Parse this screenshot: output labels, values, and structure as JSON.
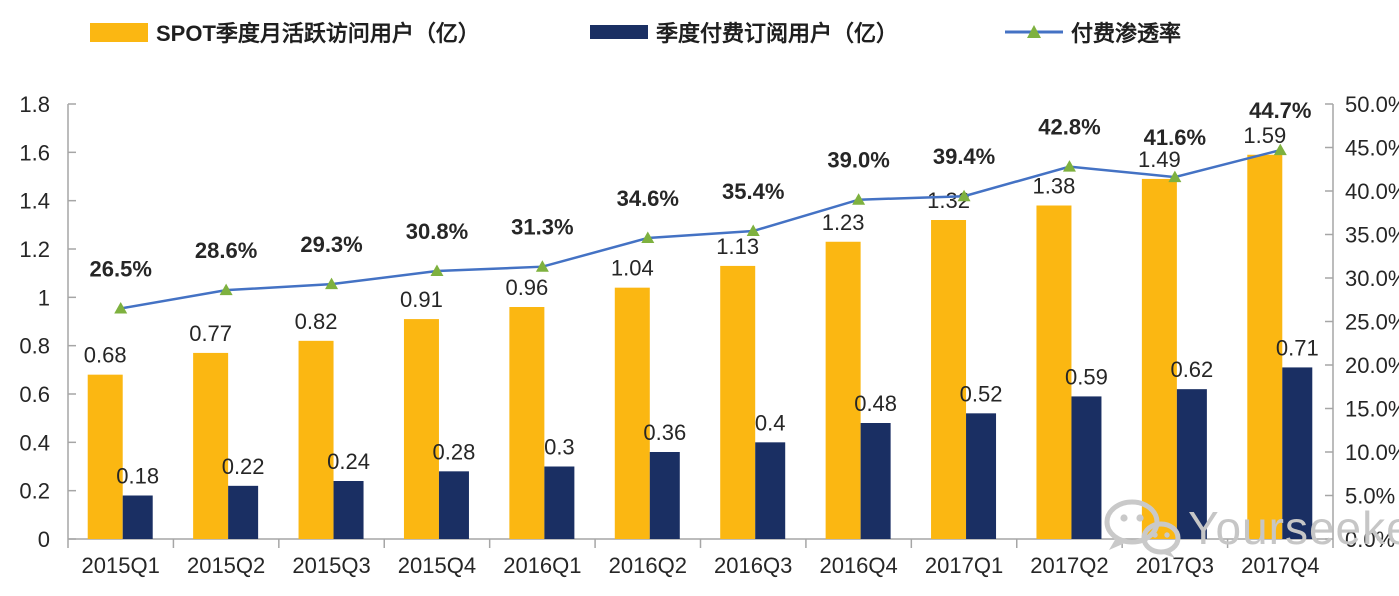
{
  "legend": [
    {
      "label": "SPOT季度月活跃访问用户（亿）",
      "color": "#FBB712"
    },
    {
      "label": "季度付费订阅用户（亿）",
      "color": "#1A2F63"
    },
    {
      "label": "付费渗透率",
      "color": "#4472C4",
      "marker_color": "#7EB13F"
    }
  ],
  "watermark": {
    "text": "Yourseeker",
    "icon": "wechat-icon",
    "color": "#C6C6C6"
  },
  "chart_data": {
    "type": "bar",
    "subtype": "grouped bars with overlaid line on secondary axis",
    "categories": [
      "2015Q1",
      "2015Q2",
      "2015Q3",
      "2015Q4",
      "2016Q1",
      "2016Q2",
      "2016Q3",
      "2016Q4",
      "2017Q1",
      "2017Q2",
      "2017Q3",
      "2017Q4"
    ],
    "series": [
      {
        "name": "SPOT季度月活跃访问用户（亿）",
        "type": "bar",
        "axis": "left",
        "color": "#FBB712",
        "values": [
          0.68,
          0.77,
          0.82,
          0.91,
          0.96,
          1.04,
          1.13,
          1.23,
          1.32,
          1.38,
          1.49,
          1.59
        ],
        "labels": [
          "0.68",
          "0.77",
          "0.82",
          "0.91",
          "0.96",
          "1.04",
          "1.13",
          "1.23",
          "1.32",
          "1.38",
          "1.49",
          "1.59"
        ]
      },
      {
        "name": "季度付费订阅用户（亿）",
        "type": "bar",
        "axis": "left",
        "color": "#1A2F63",
        "values": [
          0.18,
          0.22,
          0.24,
          0.28,
          0.3,
          0.36,
          0.4,
          0.48,
          0.52,
          0.59,
          0.62,
          0.71
        ],
        "labels": [
          "0.18",
          "0.22",
          "0.24",
          "0.28",
          "0.3",
          "0.36",
          "0.4",
          "0.48",
          "0.52",
          "0.59",
          "0.62",
          "0.71"
        ]
      },
      {
        "name": "付费渗透率",
        "type": "line",
        "axis": "right",
        "color": "#4472C4",
        "marker": "triangle",
        "marker_color": "#7EB13F",
        "values": [
          26.5,
          28.6,
          29.3,
          30.8,
          31.3,
          34.6,
          35.4,
          39.0,
          39.4,
          42.8,
          41.6,
          44.7
        ],
        "labels": [
          "26.5%",
          "28.6%",
          "29.3%",
          "30.8%",
          "31.3%",
          "34.6%",
          "35.4%",
          "39.0%",
          "39.4%",
          "42.8%",
          "41.6%",
          "44.7%"
        ]
      }
    ],
    "left_axis": {
      "min": 0,
      "max": 1.8,
      "ticks": [
        "0",
        "0.2",
        "0.4",
        "0.6",
        "0.8",
        "1",
        "1.2",
        "1.4",
        "1.6",
        "1.8"
      ]
    },
    "right_axis": {
      "min": 0,
      "max": 50,
      "ticks": [
        "0.0%",
        "5.0%",
        "10.0%",
        "15.0%",
        "20.0%",
        "25.0%",
        "30.0%",
        "35.0%",
        "40.0%",
        "45.0%",
        "50.0%"
      ]
    },
    "grid": false,
    "legend_position": "top",
    "axis_color": "#A6A6A6",
    "label_color": "#262626"
  }
}
